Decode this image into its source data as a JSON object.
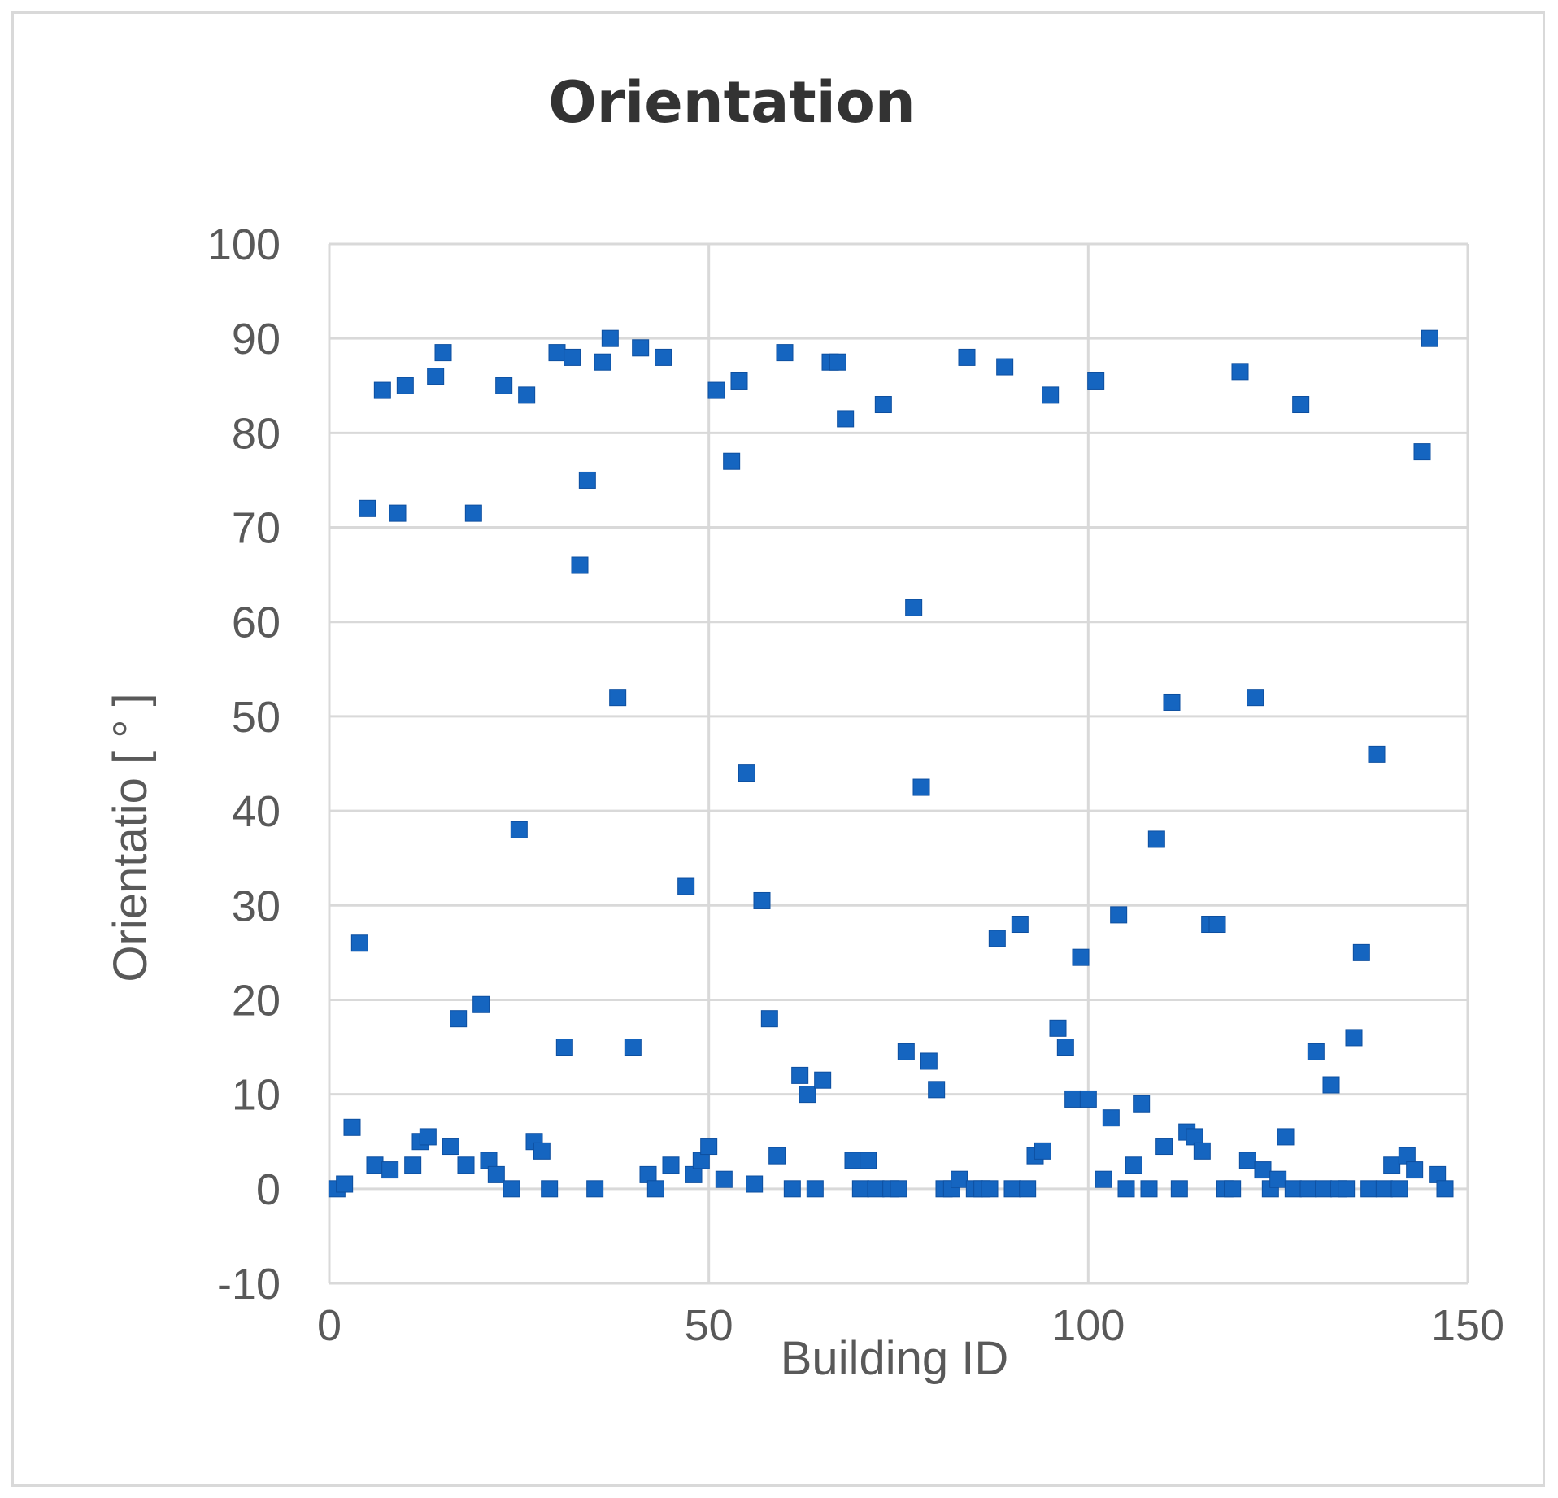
{
  "chart_data": {
    "type": "scatter",
    "title": "Orientation",
    "xlabel": "Building ID",
    "ylabel": "Orientatio [ ° ]",
    "xlim": [
      0,
      150
    ],
    "ylim": [
      -10,
      100
    ],
    "xticks": [
      0,
      50,
      100,
      150
    ],
    "yticks": [
      -10,
      0,
      10,
      20,
      30,
      40,
      50,
      60,
      70,
      80,
      90,
      100
    ],
    "grid": true,
    "legend": "none",
    "marker": "square",
    "color": "#1565C0",
    "points": [
      [
        1,
        0
      ],
      [
        2,
        0.5
      ],
      [
        3,
        6.5
      ],
      [
        4,
        26
      ],
      [
        5,
        72
      ],
      [
        6,
        2.5
      ],
      [
        7,
        84.5
      ],
      [
        8,
        2
      ],
      [
        9,
        71.5
      ],
      [
        10,
        85
      ],
      [
        11,
        2.5
      ],
      [
        12,
        5
      ],
      [
        13,
        5.5
      ],
      [
        14,
        86
      ],
      [
        15,
        88.5
      ],
      [
        16,
        4.5
      ],
      [
        17,
        18
      ],
      [
        18,
        2.5
      ],
      [
        19,
        71.5
      ],
      [
        20,
        19.5
      ],
      [
        21,
        3
      ],
      [
        22,
        1.5
      ],
      [
        23,
        85
      ],
      [
        24,
        0
      ],
      [
        25,
        38
      ],
      [
        26,
        84
      ],
      [
        27,
        5
      ],
      [
        28,
        4
      ],
      [
        29,
        0
      ],
      [
        30,
        88.5
      ],
      [
        31,
        15
      ],
      [
        32,
        88
      ],
      [
        33,
        66
      ],
      [
        34,
        75
      ],
      [
        35,
        0
      ],
      [
        36,
        87.5
      ],
      [
        37,
        90
      ],
      [
        38,
        52
      ],
      [
        40,
        15
      ],
      [
        41,
        89
      ],
      [
        42,
        1.5
      ],
      [
        43,
        0
      ],
      [
        44,
        88
      ],
      [
        45,
        2.5
      ],
      [
        47,
        32
      ],
      [
        48,
        1.5
      ],
      [
        49,
        3
      ],
      [
        50,
        4.5
      ],
      [
        51,
        84.5
      ],
      [
        52,
        1
      ],
      [
        53,
        77
      ],
      [
        54,
        85.5
      ],
      [
        55,
        44
      ],
      [
        56,
        0.5
      ],
      [
        57,
        30.5
      ],
      [
        58,
        18
      ],
      [
        59,
        3.5
      ],
      [
        60,
        88.5
      ],
      [
        61,
        0
      ],
      [
        62,
        12
      ],
      [
        63,
        10
      ],
      [
        64,
        0
      ],
      [
        65,
        11.5
      ],
      [
        66,
        87.5
      ],
      [
        67,
        87.5
      ],
      [
        68,
        81.5
      ],
      [
        69,
        3
      ],
      [
        70,
        0
      ],
      [
        71,
        3
      ],
      [
        72,
        0
      ],
      [
        73,
        83
      ],
      [
        74,
        0
      ],
      [
        75,
        0
      ],
      [
        76,
        14.5
      ],
      [
        77,
        61.5
      ],
      [
        78,
        42.5
      ],
      [
        79,
        13.5
      ],
      [
        80,
        10.5
      ],
      [
        81,
        0
      ],
      [
        82,
        0
      ],
      [
        83,
        1
      ],
      [
        84,
        88
      ],
      [
        85,
        0
      ],
      [
        86,
        0
      ],
      [
        87,
        0
      ],
      [
        88,
        26.5
      ],
      [
        89,
        87
      ],
      [
        90,
        0
      ],
      [
        91,
        28
      ],
      [
        92,
        0
      ],
      [
        93,
        3.5
      ],
      [
        94,
        4
      ],
      [
        95,
        84
      ],
      [
        96,
        17
      ],
      [
        97,
        15
      ],
      [
        98,
        9.5
      ],
      [
        99,
        24.5
      ],
      [
        100,
        9.5
      ],
      [
        101,
        85.5
      ],
      [
        102,
        1
      ],
      [
        103,
        7.5
      ],
      [
        104,
        29
      ],
      [
        105,
        0
      ],
      [
        106,
        2.5
      ],
      [
        107,
        9
      ],
      [
        108,
        0
      ],
      [
        109,
        37
      ],
      [
        110,
        4.5
      ],
      [
        111,
        51.5
      ],
      [
        112,
        0
      ],
      [
        113,
        6
      ],
      [
        114,
        5.5
      ],
      [
        115,
        4
      ],
      [
        116,
        28
      ],
      [
        117,
        28
      ],
      [
        118,
        0
      ],
      [
        119,
        0
      ],
      [
        120,
        86.5
      ],
      [
        121,
        3
      ],
      [
        122,
        52
      ],
      [
        123,
        2
      ],
      [
        124,
        0
      ],
      [
        125,
        1
      ],
      [
        126,
        5.5
      ],
      [
        127,
        0
      ],
      [
        128,
        83
      ],
      [
        129,
        0
      ],
      [
        130,
        14.5
      ],
      [
        131,
        0
      ],
      [
        132,
        11
      ],
      [
        133,
        0
      ],
      [
        134,
        0
      ],
      [
        135,
        16
      ],
      [
        136,
        25
      ],
      [
        137,
        0
      ],
      [
        138,
        46
      ],
      [
        139,
        0
      ],
      [
        140,
        2.5
      ],
      [
        141,
        0
      ],
      [
        142,
        3.5
      ],
      [
        143,
        2
      ],
      [
        144,
        78
      ],
      [
        145,
        90
      ],
      [
        146,
        1.5
      ],
      [
        147,
        0
      ]
    ]
  }
}
